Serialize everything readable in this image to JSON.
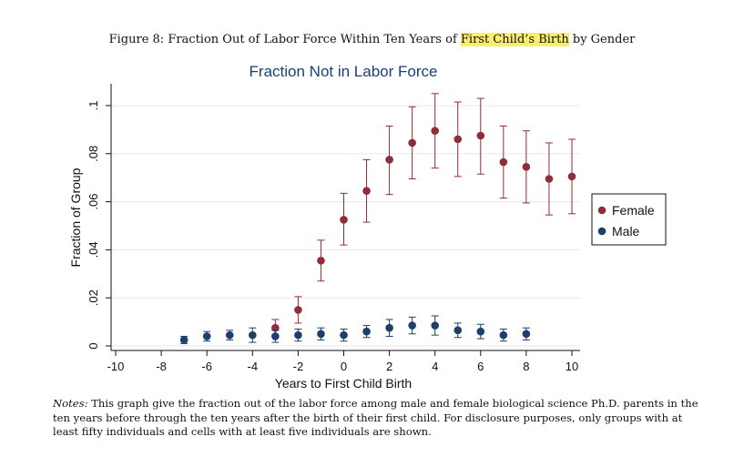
{
  "caption": {
    "prefix": "Figure 8: Fraction Out of Labor Force Within Ten Years of ",
    "highlight": "First Child’s Birth",
    "suffix": " by Gender"
  },
  "notes": {
    "lead": "Notes:",
    "text": " This graph give the fraction out of the labor force among male and female biological science Ph.D. parents in the ten years before through the ten years after the birth of their first child. For disclosure purposes, only groups with at least fifty individuals and cells with at least five individuals are shown."
  },
  "chart_data": {
    "type": "scatter",
    "title": "Fraction Not in Labor Force",
    "xlabel": "Years to First Child Birth",
    "ylabel": "Fraction of Group",
    "xlim": [
      -10,
      10
    ],
    "ylim": [
      0,
      0.1
    ],
    "xticks": [
      -10,
      -8,
      -6,
      -4,
      -2,
      0,
      2,
      4,
      6,
      8,
      10
    ],
    "xtick_labels": [
      "-10",
      "-8",
      "-6",
      "-4",
      "-2",
      "0",
      "2",
      "4",
      "6",
      "8",
      "10"
    ],
    "yticks": [
      0,
      0.02,
      0.04,
      0.06,
      0.08,
      0.1
    ],
    "ytick_labels": [
      "0",
      ".02",
      ".04",
      ".06",
      ".08",
      ".1"
    ],
    "grid": true,
    "legend_position": "right",
    "series": [
      {
        "name": "Female",
        "color": "#8f2d3a",
        "points": [
          {
            "x": -3,
            "y": 0.0075,
            "lo": 0.004,
            "hi": 0.011
          },
          {
            "x": -2,
            "y": 0.015,
            "lo": 0.0095,
            "hi": 0.0205
          },
          {
            "x": -1,
            "y": 0.0355,
            "lo": 0.027,
            "hi": 0.044
          },
          {
            "x": 0,
            "y": 0.0525,
            "lo": 0.042,
            "hi": 0.0635
          },
          {
            "x": 1,
            "y": 0.0645,
            "lo": 0.0515,
            "hi": 0.0775
          },
          {
            "x": 2,
            "y": 0.0775,
            "lo": 0.063,
            "hi": 0.0915
          },
          {
            "x": 3,
            "y": 0.0845,
            "lo": 0.0695,
            "hi": 0.0995
          },
          {
            "x": 4,
            "y": 0.0895,
            "lo": 0.074,
            "hi": 0.105
          },
          {
            "x": 5,
            "y": 0.086,
            "lo": 0.0705,
            "hi": 0.1015
          },
          {
            "x": 6,
            "y": 0.0875,
            "lo": 0.0715,
            "hi": 0.103
          },
          {
            "x": 7,
            "y": 0.0765,
            "lo": 0.0615,
            "hi": 0.0915
          },
          {
            "x": 8,
            "y": 0.0745,
            "lo": 0.0595,
            "hi": 0.0895
          },
          {
            "x": 9,
            "y": 0.0695,
            "lo": 0.0545,
            "hi": 0.0845
          },
          {
            "x": 10,
            "y": 0.0705,
            "lo": 0.055,
            "hi": 0.086
          }
        ]
      },
      {
        "name": "Male",
        "color": "#1d3f6a",
        "points": [
          {
            "x": -7,
            "y": 0.0025,
            "lo": 0.001,
            "hi": 0.004
          },
          {
            "x": -6,
            "y": 0.004,
            "lo": 0.002,
            "hi": 0.006
          },
          {
            "x": -5,
            "y": 0.0045,
            "lo": 0.0025,
            "hi": 0.0065
          },
          {
            "x": -4,
            "y": 0.0045,
            "lo": 0.0015,
            "hi": 0.0075
          },
          {
            "x": -3,
            "y": 0.004,
            "lo": 0.0015,
            "hi": 0.0065
          },
          {
            "x": -2,
            "y": 0.0045,
            "lo": 0.002,
            "hi": 0.007
          },
          {
            "x": -1,
            "y": 0.005,
            "lo": 0.0025,
            "hi": 0.0075
          },
          {
            "x": 0,
            "y": 0.0045,
            "lo": 0.002,
            "hi": 0.007
          },
          {
            "x": 1,
            "y": 0.006,
            "lo": 0.0035,
            "hi": 0.0085
          },
          {
            "x": 2,
            "y": 0.0075,
            "lo": 0.004,
            "hi": 0.011
          },
          {
            "x": 3,
            "y": 0.0085,
            "lo": 0.005,
            "hi": 0.012
          },
          {
            "x": 4,
            "y": 0.0085,
            "lo": 0.0045,
            "hi": 0.0125
          },
          {
            "x": 5,
            "y": 0.0065,
            "lo": 0.0035,
            "hi": 0.0095
          },
          {
            "x": 6,
            "y": 0.006,
            "lo": 0.003,
            "hi": 0.009
          },
          {
            "x": 7,
            "y": 0.0045,
            "lo": 0.002,
            "hi": 0.007
          },
          {
            "x": 8,
            "y": 0.005,
            "lo": 0.0025,
            "hi": 0.0075
          }
        ]
      }
    ]
  }
}
